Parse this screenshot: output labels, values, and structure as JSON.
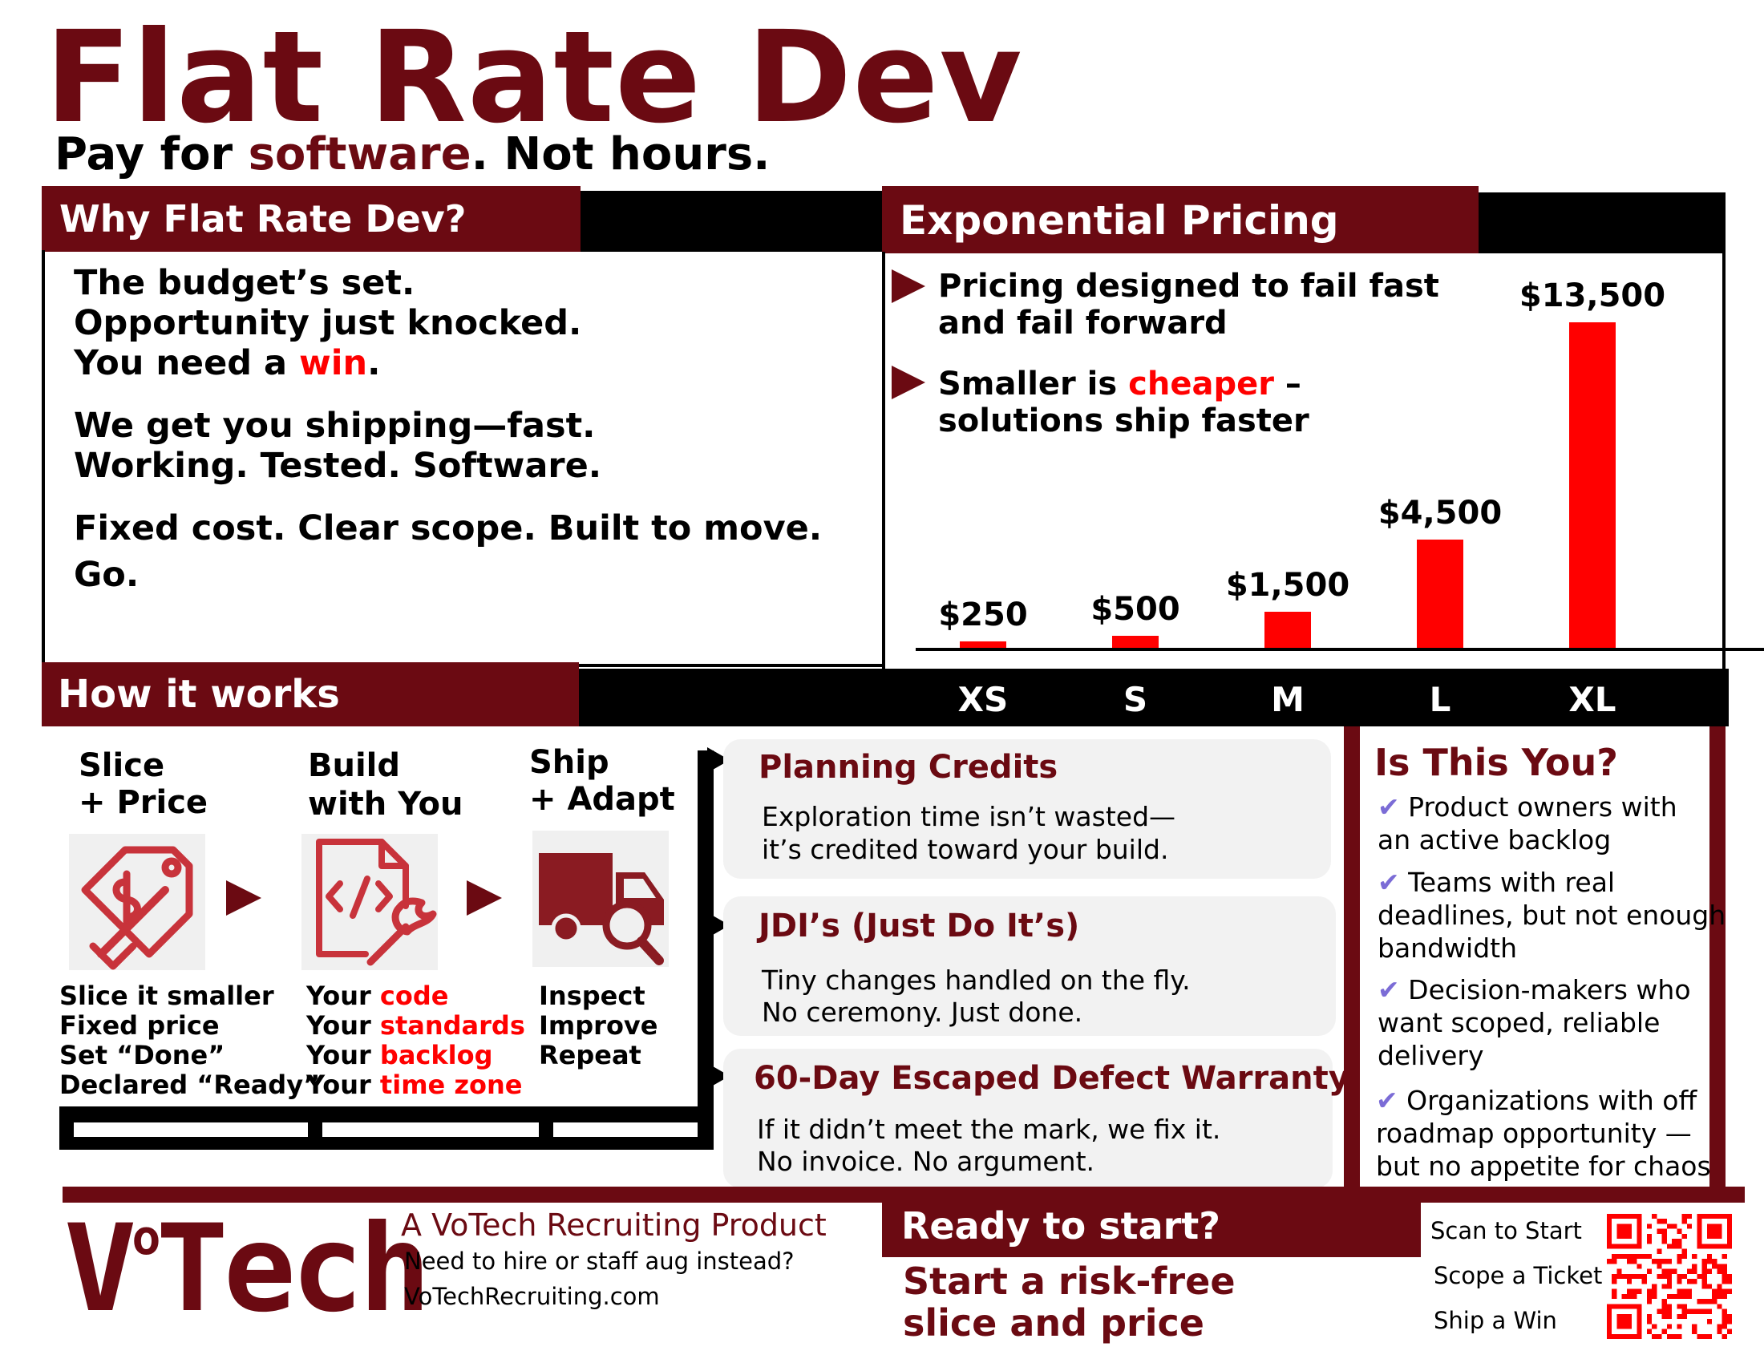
{
  "header": {
    "title": "Flat Rate Dev",
    "tagline_pre": "Pay for ",
    "tagline_accent": "software",
    "tagline_post": ". Not hours."
  },
  "why": {
    "heading": "Why Flat Rate Dev?",
    "line1": "The budget’s set.",
    "line2": "Opportunity just knocked.",
    "line3_pre": "You need a ",
    "line3_accent": "win",
    "line3_post": ".",
    "line4": "We get you shipping—fast.",
    "line5": "Working. Tested. Software.",
    "line6": "Fixed cost. Clear scope. Built to move.",
    "line7": "Go."
  },
  "pricing": {
    "heading": "Exponential Pricing",
    "bullet1_line1": "Pricing designed to fail fast",
    "bullet1_line2": "and fail forward",
    "bullet2_pre": "Smaller is ",
    "bullet2_accent": "cheaper",
    "bullet2_post": " –",
    "bullet2_line2": "solutions ship faster"
  },
  "chart_data": {
    "type": "bar",
    "categories": [
      "XS",
      "S",
      "M",
      "L",
      "XL"
    ],
    "values": [
      250,
      500,
      1500,
      4500,
      13500
    ],
    "value_labels": [
      "$250",
      "$500",
      "$1,500",
      "$4,500",
      "$13,500"
    ],
    "ylim": [
      0,
      13500
    ],
    "color": "#ff0000",
    "grid": false
  },
  "how": {
    "heading": "How it works",
    "steps": [
      {
        "title1": "Slice",
        "title2": "+ Price",
        "icon": "price-tag-slice-icon",
        "lines": [
          "Slice it smaller",
          "Fixed price",
          "Set “Done”",
          "Declared “Ready”"
        ]
      },
      {
        "title1": "Build",
        "title2": "with You",
        "icon": "code-file-wrench-icon",
        "lines": [
          {
            "pre": "Your ",
            "accent": "code"
          },
          {
            "pre": "Your ",
            "accent": "standards"
          },
          {
            "pre": "Your ",
            "accent": "backlog"
          },
          {
            "pre": "Your ",
            "accent": "time zone"
          }
        ]
      },
      {
        "title1": "Ship",
        "title2": "+ Adapt",
        "icon": "truck-magnifier-icon",
        "lines": [
          "Inspect",
          "Improve",
          "Repeat"
        ]
      }
    ]
  },
  "cards": [
    {
      "title": "Planning Credits",
      "line1": "Exploration time isn’t wasted—",
      "line2": "it’s credited toward your build."
    },
    {
      "title": "JDI’s (Just Do It’s)",
      "line1": "Tiny changes handled on the fly.",
      "line2": "No ceremony. Just done."
    },
    {
      "title": "60-Day Escaped Defect Warranty",
      "line1": "If it didn’t meet the mark, we fix it.",
      "line2": "No invoice. No argument."
    }
  ],
  "isyou": {
    "heading": "Is This You?",
    "items": [
      {
        "l1": "Product owners with",
        "l2": "an active backlog"
      },
      {
        "l1": "Teams with real",
        "l2": "deadlines, but not enough",
        "l3": "bandwidth"
      },
      {
        "l1": "Decision-makers who",
        "l2": "want scoped, reliable",
        "l3": "delivery"
      },
      {
        "l1": "Organizations with off",
        "l2": "roadmap opportunity —",
        "l3": "but no appetite for chaos"
      }
    ],
    "check_icon": "check-icon",
    "check_color": "#7b6cd6"
  },
  "footer": {
    "brand_v": "V",
    "brand_sup": "o",
    "brand_rest": "Tech",
    "product": "A VoTech Recruiting Product",
    "question": "Need to hire or staff aug instead?",
    "site": "VoTechRecruiting.com",
    "cta_heading": "Ready to start?",
    "cta_line1": "Start a risk-free",
    "cta_line2": "slice and price",
    "qr1": "Scan to Start",
    "qr2": "Scope a Ticket",
    "qr3": "Ship a Win",
    "qr_icon": "qr-code-icon"
  },
  "colors": {
    "maroon": "#6b0a12",
    "accent_red": "#ff0000",
    "card_bg": "#f2f2f2"
  }
}
